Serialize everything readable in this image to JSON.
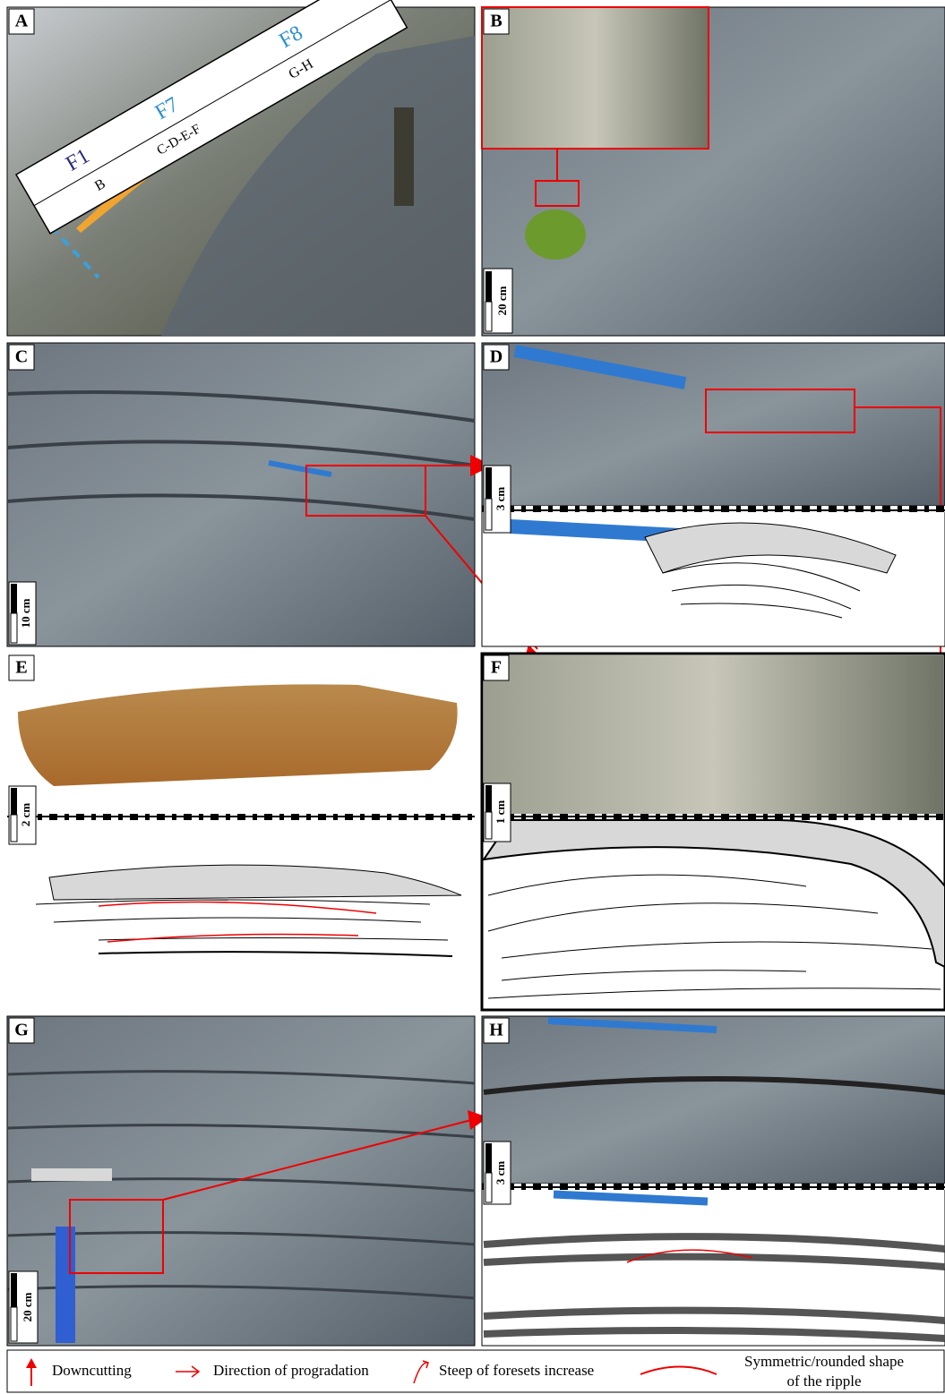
{
  "panels": [
    {
      "label": "A",
      "facies": [
        "F1",
        "F7",
        "F8"
      ],
      "units": [
        "B",
        "C-D-E-F",
        "G-H"
      ]
    },
    {
      "label": "B",
      "scale_bar": "20 cm"
    },
    {
      "label": "C",
      "scale_bar": "10 cm"
    },
    {
      "label": "D",
      "scale_bar": "3 cm"
    },
    {
      "label": "E",
      "scale_bar": "2 cm"
    },
    {
      "label": "F",
      "scale_bar": "1 cm"
    },
    {
      "label": "G",
      "scale_bar": "20 cm"
    },
    {
      "label": "H",
      "scale_bar": "3 cm"
    }
  ],
  "legend": [
    {
      "label": "Downcutting"
    },
    {
      "label": "Direction of progradation"
    },
    {
      "label": "Steep of foresets increase"
    },
    {
      "label_lines": [
        "Symmetric/rounded shape",
        "of the ripple"
      ]
    }
  ]
}
